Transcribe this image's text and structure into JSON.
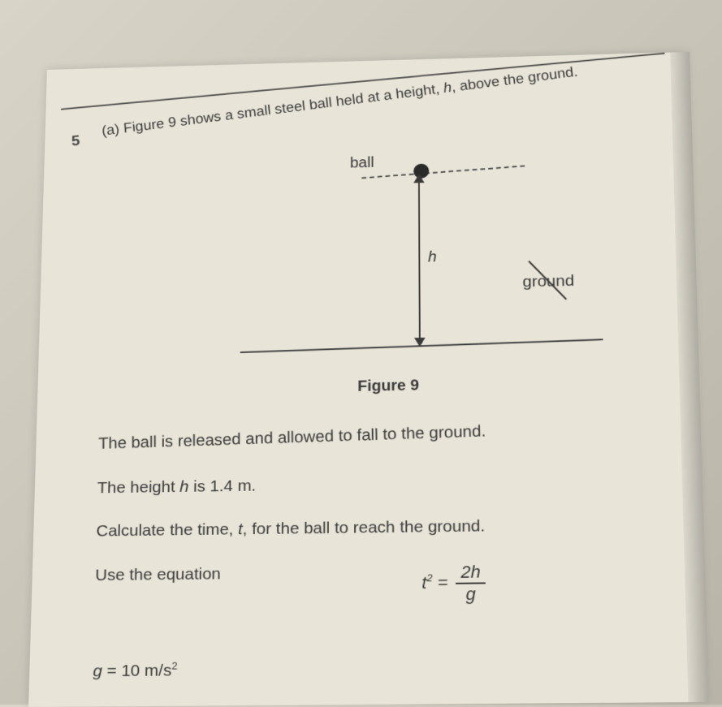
{
  "question": {
    "number": "5",
    "part": "(a)",
    "text_before_h": "Figure 9 shows a small steel ball held at a height, ",
    "h_var": "h",
    "text_after_h": ", above the ground."
  },
  "diagram": {
    "ball_label": "ball",
    "h_label": "h",
    "ground_label": "ground",
    "ball_color": "#2a2a2a",
    "line_color": "#3a3a3a"
  },
  "figure_caption": "Figure 9",
  "body": {
    "line1": "The ball is released and allowed to fall to the ground.",
    "line2_before": "The height ",
    "line2_h": "h",
    "line2_after": " is 1.4 m.",
    "line3_before": "Calculate the time, ",
    "line3_t": "t",
    "line3_after": ", for the ball to reach the ground.",
    "line4": "Use the equation"
  },
  "equation": {
    "lhs_var": "t",
    "lhs_exp": "2",
    "equals": " = ",
    "num_coef": "2",
    "num_var": "h",
    "den": "g"
  },
  "constants": {
    "g_var": "g",
    "g_equals": " = ",
    "g_value": "10 m/s",
    "g_exp": "2"
  },
  "style": {
    "text_color": "#3a3a3a",
    "background": "#e8e4d8",
    "body_fontsize": 21,
    "question_fontsize": 19
  }
}
